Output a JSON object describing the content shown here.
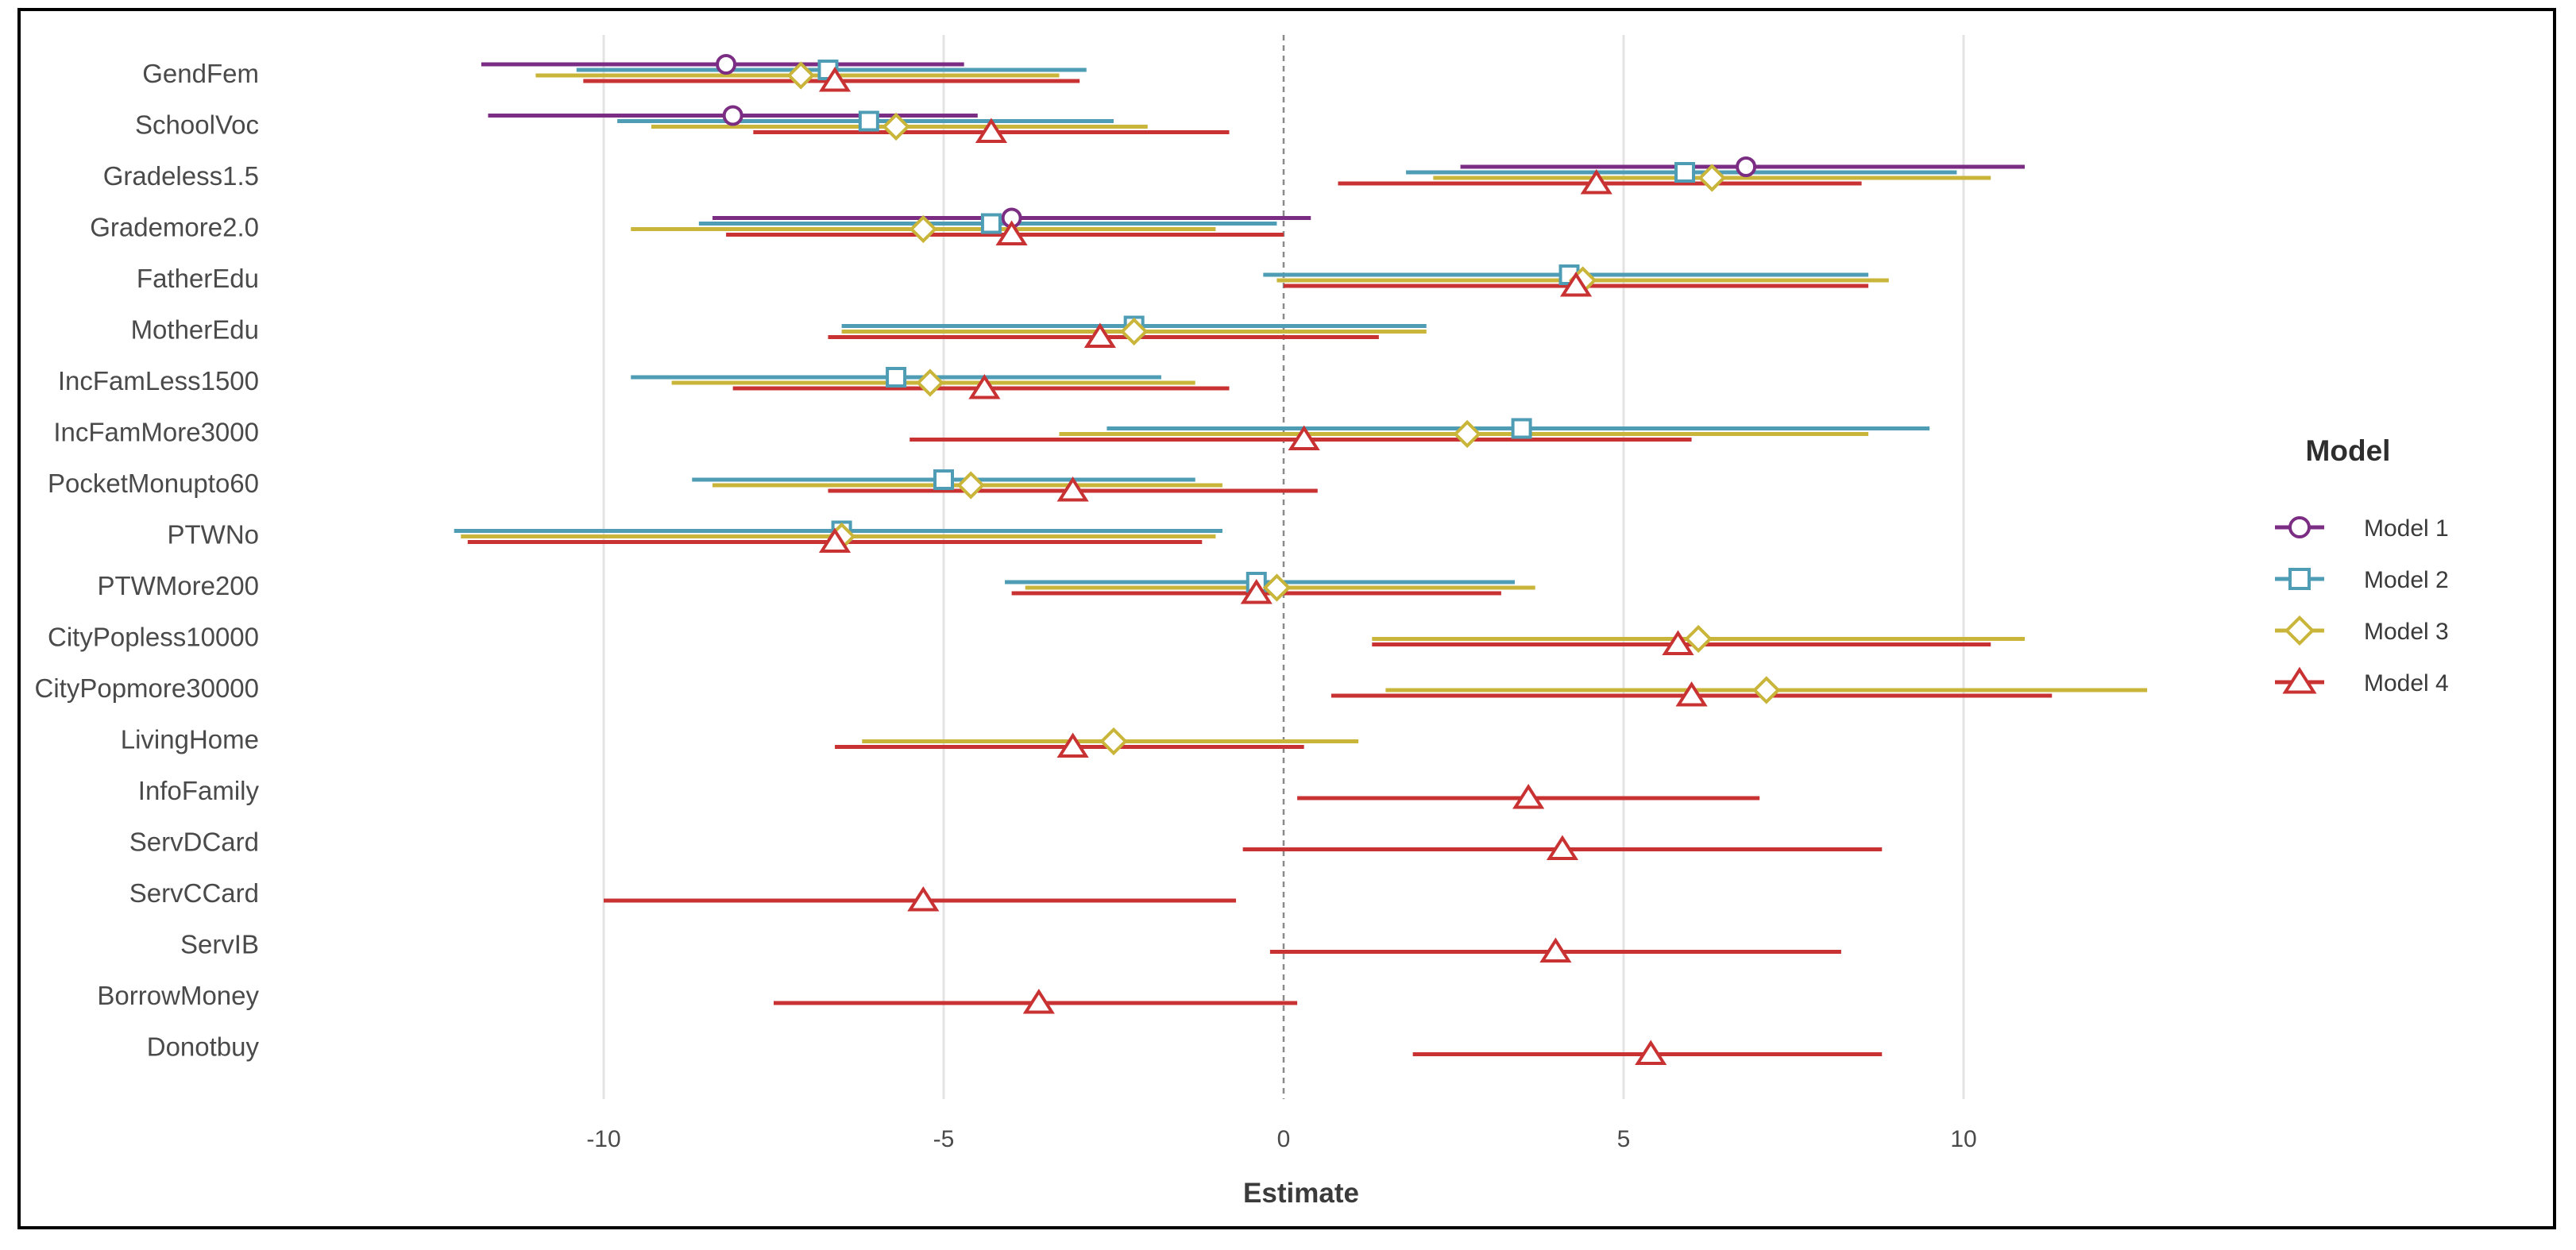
{
  "chart_data": {
    "type": "forest",
    "title": "",
    "xlabel": "Estimate",
    "ylabel": "",
    "xlim": [
      -12.3,
      13.0
    ],
    "xticks": [
      -10,
      -5,
      0,
      5,
      10
    ],
    "xtick_labels": [
      "-10",
      "-5",
      "0",
      "5",
      "10"
    ],
    "reference_line": 0,
    "grid": "vertical major",
    "legend": {
      "title": "Model",
      "position": "right"
    },
    "categories": [
      "GendFem",
      "SchoolVoc",
      "Gradeless1.5",
      "Grademore2.0",
      "FatherEdu",
      "MotherEdu",
      "IncFamLess1500",
      "IncFamMore3000",
      "PocketMonupto60",
      "PTWNo",
      "PTWMore200",
      "CityPopless10000",
      "CityPopmore30000",
      "LivingHome",
      "InfoFamily",
      "ServDCard",
      "ServCCard",
      "ServIB",
      "BorrowMoney",
      "Donotbuy"
    ],
    "series": [
      {
        "name": "Model 1",
        "color": "#7b2d83",
        "marker": "circle",
        "points": [
          {
            "category": "GendFem",
            "estimate": -8.2,
            "low": -11.8,
            "high": -4.7
          },
          {
            "category": "SchoolVoc",
            "estimate": -8.1,
            "low": -11.7,
            "high": -4.5
          },
          {
            "category": "Gradeless1.5",
            "estimate": 6.8,
            "low": 2.6,
            "high": 10.9
          },
          {
            "category": "Grademore2.0",
            "estimate": -4.0,
            "low": -8.4,
            "high": 0.4
          }
        ]
      },
      {
        "name": "Model 2",
        "color": "#4e9db4",
        "marker": "square",
        "points": [
          {
            "category": "GendFem",
            "estimate": -6.7,
            "low": -10.4,
            "high": -2.9
          },
          {
            "category": "SchoolVoc",
            "estimate": -6.1,
            "low": -9.8,
            "high": -2.5
          },
          {
            "category": "Gradeless1.5",
            "estimate": 5.9,
            "low": 1.8,
            "high": 9.9
          },
          {
            "category": "Grademore2.0",
            "estimate": -4.3,
            "low": -8.6,
            "high": -0.1
          },
          {
            "category": "FatherEdu",
            "estimate": 4.2,
            "low": -0.3,
            "high": 8.6
          },
          {
            "category": "MotherEdu",
            "estimate": -2.2,
            "low": -6.5,
            "high": 2.1
          },
          {
            "category": "IncFamLess1500",
            "estimate": -5.7,
            "low": -9.6,
            "high": -1.8
          },
          {
            "category": "IncFamMore3000",
            "estimate": 3.5,
            "low": -2.6,
            "high": 9.5
          },
          {
            "category": "PocketMonupto60",
            "estimate": -5.0,
            "low": -8.7,
            "high": -1.3
          },
          {
            "category": "PTWNo",
            "estimate": -6.5,
            "low": -12.2,
            "high": -0.9
          },
          {
            "category": "PTWMore200",
            "estimate": -0.4,
            "low": -4.1,
            "high": 3.4
          }
        ]
      },
      {
        "name": "Model 3",
        "color": "#c9b53a",
        "marker": "diamond",
        "points": [
          {
            "category": "GendFem",
            "estimate": -7.1,
            "low": -11.0,
            "high": -3.3
          },
          {
            "category": "SchoolVoc",
            "estimate": -5.7,
            "low": -9.3,
            "high": -2.0
          },
          {
            "category": "Gradeless1.5",
            "estimate": 6.3,
            "low": 2.2,
            "high": 10.4
          },
          {
            "category": "Grademore2.0",
            "estimate": -5.3,
            "low": -9.6,
            "high": -1.0
          },
          {
            "category": "FatherEdu",
            "estimate": 4.4,
            "low": -0.1,
            "high": 8.9
          },
          {
            "category": "MotherEdu",
            "estimate": -2.2,
            "low": -6.5,
            "high": 2.1
          },
          {
            "category": "IncFamLess1500",
            "estimate": -5.2,
            "low": -9.0,
            "high": -1.3
          },
          {
            "category": "IncFamMore3000",
            "estimate": 2.7,
            "low": -3.3,
            "high": 8.6
          },
          {
            "category": "PocketMonupto60",
            "estimate": -4.6,
            "low": -8.4,
            "high": -0.9
          },
          {
            "category": "PTWNo",
            "estimate": -6.5,
            "low": -12.1,
            "high": -1.0
          },
          {
            "category": "PTWMore200",
            "estimate": -0.1,
            "low": -3.8,
            "high": 3.7
          },
          {
            "category": "CityPopless10000",
            "estimate": 6.1,
            "low": 1.3,
            "high": 10.9
          },
          {
            "category": "CityPopmore30000",
            "estimate": 7.1,
            "low": 1.5,
            "high": 12.7
          },
          {
            "category": "LivingHome",
            "estimate": -2.5,
            "low": -6.2,
            "high": 1.1
          }
        ]
      },
      {
        "name": "Model 4",
        "color": "#c93232",
        "marker": "triangle",
        "points": [
          {
            "category": "GendFem",
            "estimate": -6.6,
            "low": -10.3,
            "high": -3.0
          },
          {
            "category": "SchoolVoc",
            "estimate": -4.3,
            "low": -7.8,
            "high": -0.8
          },
          {
            "category": "Gradeless1.5",
            "estimate": 4.6,
            "low": 0.8,
            "high": 8.5
          },
          {
            "category": "Grademore2.0",
            "estimate": -4.0,
            "low": -8.2,
            "high": 0.0
          },
          {
            "category": "FatherEdu",
            "estimate": 4.3,
            "low": 0.0,
            "high": 8.6
          },
          {
            "category": "MotherEdu",
            "estimate": -2.7,
            "low": -6.7,
            "high": 1.4
          },
          {
            "category": "IncFamLess1500",
            "estimate": -4.4,
            "low": -8.1,
            "high": -0.8
          },
          {
            "category": "IncFamMore3000",
            "estimate": 0.3,
            "low": -5.5,
            "high": 6.0
          },
          {
            "category": "PocketMonupto60",
            "estimate": -3.1,
            "low": -6.7,
            "high": 0.5
          },
          {
            "category": "PTWNo",
            "estimate": -6.6,
            "low": -12.0,
            "high": -1.2
          },
          {
            "category": "PTWMore200",
            "estimate": -0.4,
            "low": -4.0,
            "high": 3.2
          },
          {
            "category": "CityPopless10000",
            "estimate": 5.8,
            "low": 1.3,
            "high": 10.4
          },
          {
            "category": "CityPopmore30000",
            "estimate": 6.0,
            "low": 0.7,
            "high": 11.3
          },
          {
            "category": "LivingHome",
            "estimate": -3.1,
            "low": -6.6,
            "high": 0.3
          },
          {
            "category": "InfoFamily",
            "estimate": 3.6,
            "low": 0.2,
            "high": 7.0
          },
          {
            "category": "ServDCard",
            "estimate": 4.1,
            "low": -0.6,
            "high": 8.8
          },
          {
            "category": "ServCCard",
            "estimate": -5.3,
            "low": -10.0,
            "high": -0.7
          },
          {
            "category": "ServIB",
            "estimate": 4.0,
            "low": -0.2,
            "high": 8.2
          },
          {
            "category": "BorrowMoney",
            "estimate": -3.6,
            "low": -7.5,
            "high": 0.2
          },
          {
            "category": "Donotbuy",
            "estimate": 5.4,
            "low": 1.9,
            "high": 8.8
          }
        ]
      }
    ]
  }
}
